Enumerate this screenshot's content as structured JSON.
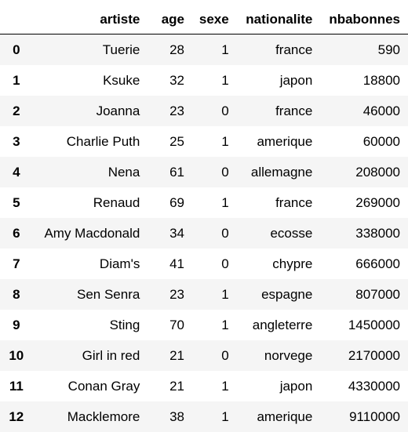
{
  "table": {
    "columns": [
      "artiste",
      "age",
      "sexe",
      "nationalite",
      "nbabonnes"
    ],
    "rows": [
      {
        "index": "0",
        "artiste": "Tuerie",
        "age": "28",
        "sexe": "1",
        "nationalite": "france",
        "nbabonnes": "590"
      },
      {
        "index": "1",
        "artiste": "Ksuke",
        "age": "32",
        "sexe": "1",
        "nationalite": "japon",
        "nbabonnes": "18800"
      },
      {
        "index": "2",
        "artiste": "Joanna",
        "age": "23",
        "sexe": "0",
        "nationalite": "france",
        "nbabonnes": "46000"
      },
      {
        "index": "3",
        "artiste": "Charlie Puth",
        "age": "25",
        "sexe": "1",
        "nationalite": "amerique",
        "nbabonnes": "60000"
      },
      {
        "index": "4",
        "artiste": "Nena",
        "age": "61",
        "sexe": "0",
        "nationalite": "allemagne",
        "nbabonnes": "208000"
      },
      {
        "index": "5",
        "artiste": "Renaud",
        "age": "69",
        "sexe": "1",
        "nationalite": "france",
        "nbabonnes": "269000"
      },
      {
        "index": "6",
        "artiste": "Amy Macdonald",
        "age": "34",
        "sexe": "0",
        "nationalite": "ecosse",
        "nbabonnes": "338000"
      },
      {
        "index": "7",
        "artiste": "Diam's",
        "age": "41",
        "sexe": "0",
        "nationalite": "chypre",
        "nbabonnes": "666000"
      },
      {
        "index": "8",
        "artiste": "Sen Senra",
        "age": "23",
        "sexe": "1",
        "nationalite": "espagne",
        "nbabonnes": "807000"
      },
      {
        "index": "9",
        "artiste": "Sting",
        "age": "70",
        "sexe": "1",
        "nationalite": "angleterre",
        "nbabonnes": "1450000"
      },
      {
        "index": "10",
        "artiste": "Girl in red",
        "age": "21",
        "sexe": "0",
        "nationalite": "norvege",
        "nbabonnes": "2170000"
      },
      {
        "index": "11",
        "artiste": "Conan Gray",
        "age": "21",
        "sexe": "1",
        "nationalite": "japon",
        "nbabonnes": "4330000"
      },
      {
        "index": "12",
        "artiste": "Macklemore",
        "age": "38",
        "sexe": "1",
        "nationalite": "amerique",
        "nbabonnes": "9110000"
      }
    ]
  },
  "colors": {
    "stripe": "#f5f5f5",
    "background": "#ffffff",
    "text": "#000000"
  }
}
